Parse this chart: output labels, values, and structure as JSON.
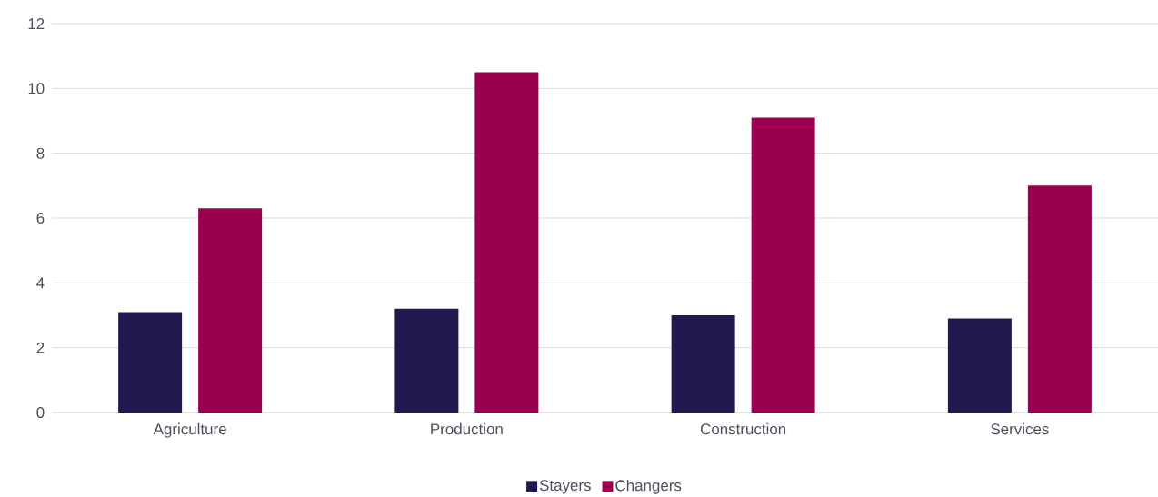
{
  "chart_data": {
    "type": "bar",
    "categories": [
      "Agriculture",
      "Production",
      "Construction",
      "Services"
    ],
    "series": [
      {
        "name": "Stayers",
        "color": "#20194f",
        "values": [
          3.1,
          3.2,
          3.0,
          2.9
        ]
      },
      {
        "name": "Changers",
        "color": "#9b004f",
        "values": [
          6.3,
          10.5,
          9.1,
          7.0
        ]
      }
    ],
    "ylim": [
      0,
      12
    ],
    "yticks": [
      0,
      2,
      4,
      6,
      8,
      10,
      12
    ],
    "grid": "y",
    "legend": "bottom"
  }
}
